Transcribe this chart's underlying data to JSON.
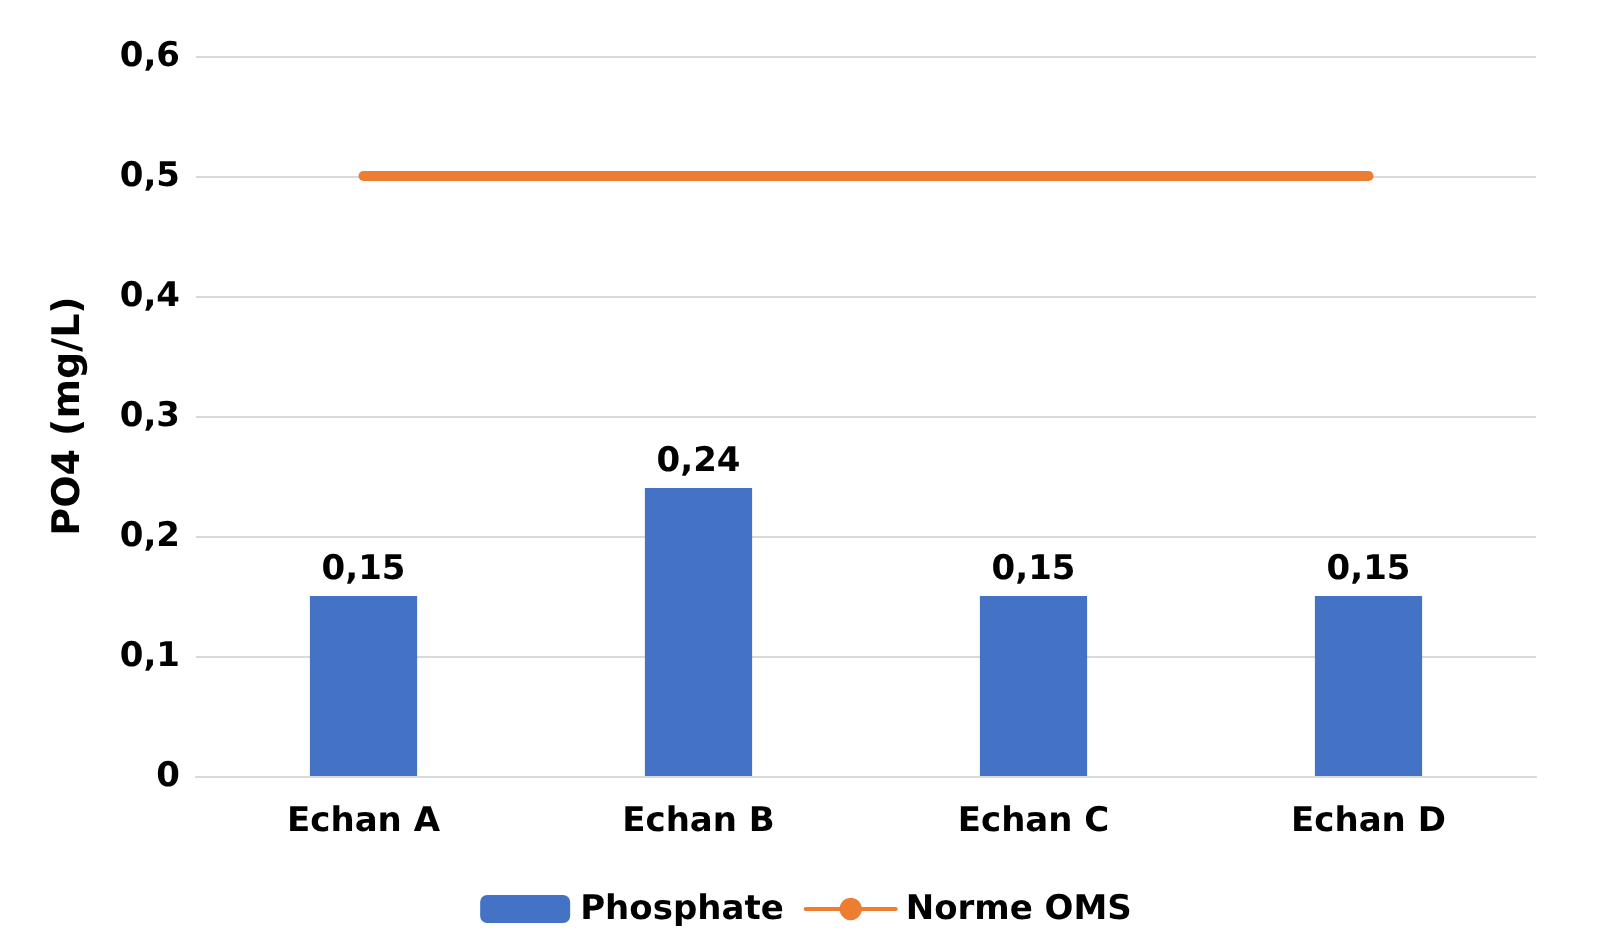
{
  "chart_data": {
    "type": "bar",
    "ylabel": "PO4 (mg/L)",
    "categories": [
      "Echan A",
      "Echan B",
      "Echan C",
      "Echan D"
    ],
    "series": [
      {
        "name": "Phosphate",
        "color": "#4472c4",
        "values": [
          0.15,
          0.24,
          0.15,
          0.15
        ],
        "value_labels": [
          "0,15",
          "0,24",
          "0,15",
          "0,15"
        ]
      },
      {
        "name": "Norme OMS",
        "type": "line",
        "color": "#ed7d31",
        "values": [
          0.5,
          0.5,
          0.5,
          0.5
        ],
        "marker": "none"
      }
    ],
    "ylim": [
      0,
      0.6
    ],
    "yticks": [
      0,
      {
        "value": 0.1,
        "label": "0,1"
      },
      {
        "value": 0.2,
        "label": "0,2"
      },
      {
        "value": 0.3,
        "label": "0,3"
      },
      {
        "value": 0.4,
        "label": "0,4"
      },
      {
        "value": 0.5,
        "label": "0,5"
      },
      {
        "value": 0.6,
        "label": "0,6"
      }
    ],
    "grid": "y",
    "legend": "bottom"
  }
}
